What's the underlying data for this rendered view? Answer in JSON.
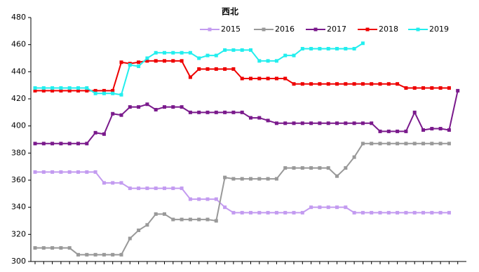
{
  "chart_data": {
    "type": "line",
    "title": "西北",
    "categories": [
      null,
      null,
      null,
      null,
      null,
      null,
      null,
      null,
      null,
      null,
      null,
      null,
      null,
      null,
      null,
      null,
      null,
      null,
      null,
      null,
      null,
      null,
      null,
      null,
      null,
      null,
      null,
      null,
      null,
      null,
      null,
      null,
      null,
      null,
      null,
      null,
      null,
      null,
      null,
      null,
      null,
      null,
      null,
      null,
      null,
      null,
      null,
      null,
      null,
      null
    ],
    "ylim": [
      300,
      480
    ],
    "yticks": [
      300,
      320,
      340,
      360,
      380,
      400,
      420,
      440,
      460,
      480
    ],
    "series": [
      {
        "name": "2015",
        "color": "#c39bf0",
        "values": [
          366,
          366,
          366,
          366,
          366,
          366,
          366,
          366,
          358,
          358,
          358,
          354,
          354,
          354,
          354,
          354,
          354,
          354,
          346,
          346,
          346,
          346,
          340,
          336,
          336,
          336,
          336,
          336,
          336,
          336,
          336,
          336,
          340,
          340,
          340,
          340,
          340,
          336,
          336,
          336,
          336,
          336,
          336,
          336,
          336,
          336,
          336,
          336,
          336,
          null
        ]
      },
      {
        "name": "2016",
        "color": "#999999",
        "values": [
          310,
          310,
          310,
          310,
          310,
          305,
          305,
          305,
          305,
          305,
          305,
          317,
          323,
          327,
          335,
          335,
          331,
          331,
          331,
          331,
          331,
          330,
          362,
          361,
          361,
          361,
          361,
          361,
          361,
          369,
          369,
          369,
          369,
          369,
          369,
          363,
          369,
          377,
          387,
          387,
          387,
          387,
          387,
          387,
          387,
          387,
          387,
          387,
          387,
          null
        ]
      },
      {
        "name": "2017",
        "color": "#7a1a8c",
        "values": [
          387,
          387,
          387,
          387,
          387,
          387,
          387,
          395,
          394,
          409,
          408,
          414,
          414,
          416,
          412,
          414,
          414,
          414,
          410,
          410,
          410,
          410,
          410,
          410,
          410,
          406,
          406,
          404,
          402,
          402,
          402,
          402,
          402,
          402,
          402,
          402,
          402,
          402,
          402,
          402,
          396,
          396,
          396,
          396,
          410,
          397,
          398,
          398,
          397,
          426
        ]
      },
      {
        "name": "2018",
        "color": "#ee0000",
        "values": [
          426,
          426,
          426,
          426,
          426,
          426,
          426,
          426,
          426,
          426,
          447,
          446,
          447,
          448,
          448,
          448,
          448,
          448,
          436,
          442,
          442,
          442,
          442,
          442,
          435,
          435,
          435,
          435,
          435,
          435,
          431,
          431,
          431,
          431,
          431,
          431,
          431,
          431,
          431,
          431,
          431,
          431,
          431,
          428,
          428,
          428,
          428,
          428,
          428,
          null
        ]
      },
      {
        "name": "2019",
        "color": "#22eeee",
        "values": [
          428,
          428,
          428,
          428,
          428,
          428,
          428,
          424,
          424,
          424,
          423,
          445,
          444,
          450,
          454,
          454,
          454,
          454,
          454,
          450,
          452,
          452,
          456,
          456,
          456,
          456,
          448,
          448,
          448,
          452,
          452,
          457,
          457,
          457,
          457,
          457,
          457,
          457,
          461,
          null,
          null,
          null,
          null,
          null,
          null,
          null,
          null,
          null,
          null,
          null
        ]
      }
    ]
  }
}
